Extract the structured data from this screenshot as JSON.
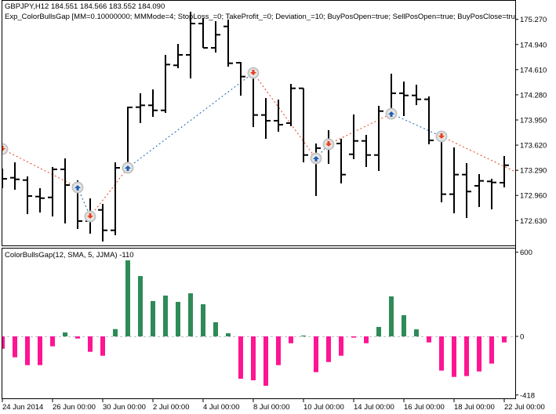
{
  "header": {
    "symbol_line": "GBPJPY,H12  184.551 184.566 183.552 184.090",
    "expert_line": "Exp_ColorBullsGap [MM=0.10000000; MMMode=4; StopLoss_=0; TakeProfit_=0; Deviation_=10; BuyPosOpen=true; SellPosOpen=true; BuyPosClose=tru"
  },
  "colors": {
    "bars": "#000000",
    "buy_signal": "#1a5fb4",
    "sell_signal": "#e8401c",
    "marker_ring": "#c4c4c4",
    "hist_positive": "#2e8b57",
    "hist_negative": "#ff1493",
    "zero_line": "#c0c0c0"
  },
  "chart_data": [
    {
      "type": "ohlc",
      "symbol": "GBPJPY",
      "timeframe": "H12",
      "ylim": [
        172.34,
        175.37
      ],
      "y_tick_labels": [
        "175.270",
        "174.940",
        "174.610",
        "174.280",
        "173.950",
        "173.620",
        "173.290",
        "172.960",
        "172.630"
      ],
      "x_ticks": [
        {
          "bar": 0,
          "label": "24 Jun 2014"
        },
        {
          "bar": 4,
          "label": "26 Jun 00:00"
        },
        {
          "bar": 8,
          "label": "30 Jun 00:00"
        },
        {
          "bar": 12,
          "label": "2 Jul 00:00"
        },
        {
          "bar": 16,
          "label": "4 Jul 00:00"
        },
        {
          "bar": 20,
          "label": "8 Jul 00:00"
        },
        {
          "bar": 24,
          "label": "10 Jul 00:00"
        },
        {
          "bar": 28,
          "label": "14 Jul 00:00"
        },
        {
          "bar": 32,
          "label": "16 Jul 00:00"
        },
        {
          "bar": 36,
          "label": "18 Jul 00:00"
        },
        {
          "bar": 40,
          "label": "22 Jul 00:00"
        }
      ],
      "ohlc": [
        [
          173.189,
          173.312,
          173.055,
          173.178
        ],
        [
          173.192,
          173.394,
          173.034,
          173.171
        ],
        [
          173.161,
          173.209,
          172.715,
          172.952
        ],
        [
          172.945,
          173.055,
          172.736,
          172.924
        ],
        [
          172.934,
          173.333,
          172.684,
          173.302
        ],
        [
          173.302,
          173.446,
          172.592,
          173.096
        ],
        [
          173.096,
          173.158,
          172.52,
          172.623
        ],
        [
          172.623,
          172.921,
          172.458,
          172.674
        ],
        [
          172.77,
          172.849,
          172.355,
          172.502
        ],
        [
          172.502,
          173.394,
          172.438,
          173.322
        ],
        [
          173.322,
          174.125,
          173.281,
          174.115
        ],
        [
          174.118,
          174.3,
          173.909,
          174.142
        ],
        [
          174.142,
          174.351,
          173.991,
          174.076
        ],
        [
          174.076,
          174.804,
          174.043,
          174.677
        ],
        [
          174.667,
          174.948,
          174.629,
          174.804
        ],
        [
          174.804,
          175.37,
          174.495,
          175.215
        ],
        [
          175.215,
          175.287,
          174.896,
          174.896
        ],
        [
          174.896,
          175.246,
          174.835,
          175.068
        ],
        [
          175.177,
          175.267,
          174.65,
          174.694
        ],
        [
          174.701,
          174.711,
          174.269,
          174.519
        ],
        [
          174.526,
          174.526,
          173.857,
          174.015
        ],
        [
          174.015,
          174.238,
          173.703,
          173.94
        ],
        [
          173.94,
          174.217,
          173.796,
          173.888
        ],
        [
          173.909,
          174.423,
          173.868,
          174.365
        ],
        [
          174.365,
          174.365,
          173.394,
          173.49
        ],
        [
          173.49,
          173.641,
          172.952,
          173.58
        ],
        [
          173.6,
          173.816,
          173.374,
          173.641
        ],
        [
          173.641,
          173.703,
          173.117,
          173.233
        ],
        [
          173.5,
          174.022,
          173.436,
          173.675
        ],
        [
          173.675,
          173.754,
          173.333,
          173.49
        ],
        [
          173.49,
          174.135,
          173.281,
          174.066
        ],
        [
          174.053,
          174.557,
          174.012,
          174.3
        ],
        [
          174.3,
          174.454,
          174.001,
          174.272
        ],
        [
          174.272,
          174.413,
          174.145,
          174.221
        ],
        [
          174.221,
          174.259,
          173.631,
          173.682
        ],
        [
          173.724,
          173.724,
          172.87,
          172.976
        ],
        [
          172.976,
          173.59,
          172.726,
          173.233
        ],
        [
          173.233,
          173.384,
          172.664,
          173.011
        ],
        [
          173.086,
          173.24,
          172.808,
          173.151
        ],
        [
          173.144,
          173.178,
          172.777,
          173.13
        ],
        [
          173.127,
          173.477,
          173.065,
          173.356
        ]
      ],
      "signals": [
        {
          "bar": 0,
          "type": "sell",
          "price": 173.569
        },
        {
          "bar": 6,
          "type": "buy",
          "price": 173.065
        },
        {
          "bar": 7,
          "type": "sell",
          "price": 172.684
        },
        {
          "bar": 10,
          "type": "buy",
          "price": 173.322
        },
        {
          "bar": 20,
          "type": "sell",
          "price": 174.567
        },
        {
          "bar": 25,
          "type": "buy",
          "price": 173.446
        },
        {
          "bar": 26,
          "type": "sell",
          "price": 173.631
        },
        {
          "bar": 31,
          "type": "buy",
          "price": 174.032
        },
        {
          "bar": 35,
          "type": "sell",
          "price": 173.734
        }
      ],
      "signal_line_tail_price": 173.271
    },
    {
      "type": "bar",
      "title": "ColorBullsGap(12, SMA, 5, JJMA) -110",
      "ylim": [
        -418,
        600
      ],
      "y_tick_labels": [
        "600",
        "0",
        "-418"
      ],
      "values": [
        -88,
        -149,
        -205,
        -205,
        -71,
        28,
        -15,
        -110,
        -138,
        52,
        542,
        430,
        252,
        291,
        246,
        307,
        229,
        101,
        22,
        -302,
        -313,
        -352,
        -205,
        -49,
        6,
        -255,
        -183,
        -138,
        -9,
        -49,
        67,
        285,
        151,
        50,
        -43,
        -244,
        -289,
        -283,
        -250,
        -194,
        -43
      ]
    }
  ]
}
